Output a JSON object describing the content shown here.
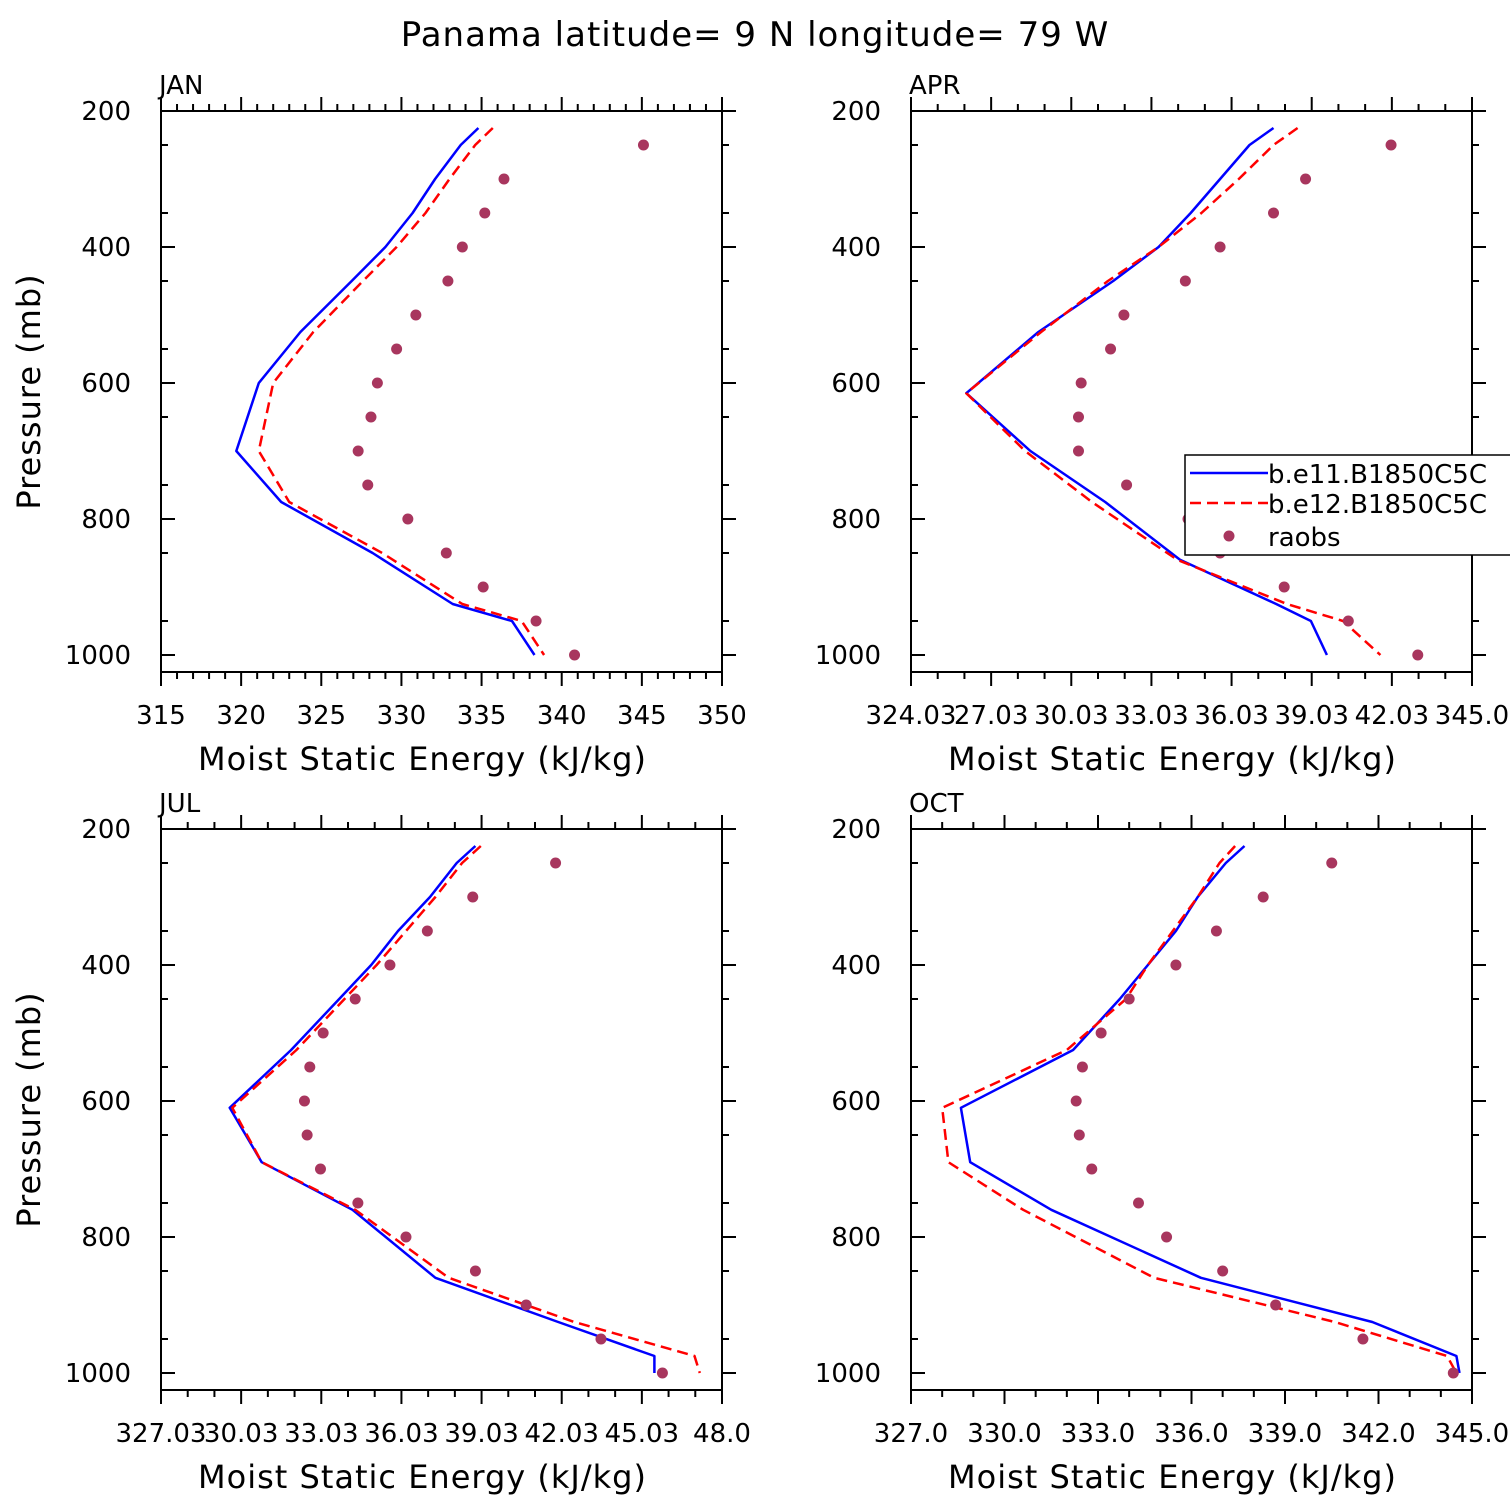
{
  "figure": {
    "title": "Panama  latitude= 9 N longitude= 79 W",
    "colors": {
      "model1": "#0000ff",
      "model2": "#ff0000",
      "obs": "#a8365e"
    },
    "legend": {
      "placement": "right of APR panel",
      "labels": [
        "b.e11.B1850C5C",
        "b.e12.B1850C5C",
        "raobs"
      ]
    }
  },
  "chart_data": [
    {
      "type": "line",
      "panel": "JAN",
      "title": "JAN",
      "xlabel": "Moist Static Energy (kJ/kg)",
      "ylabel": "Pressure (mb)",
      "xlim": [
        315,
        350
      ],
      "ylim": [
        1025,
        200
      ],
      "xticks": [
        315,
        320,
        325,
        330,
        335,
        340,
        345,
        350
      ],
      "xtick_labels": [
        "315",
        "320",
        "325",
        "330",
        "335",
        "340",
        "345",
        "350"
      ],
      "xminor": [
        316,
        317,
        318,
        319,
        321,
        322,
        323,
        324,
        326,
        327,
        328,
        329,
        331,
        332,
        333,
        334,
        336,
        337,
        338,
        339,
        341,
        342,
        343,
        344,
        346,
        347,
        348,
        349
      ],
      "yticks": [
        200,
        400,
        600,
        800,
        1000
      ],
      "ytick_labels": [
        "200",
        "400",
        "600",
        "800",
        "1000"
      ],
      "series": [
        {
          "style": "solid",
          "color": "#0000ff",
          "pressure": [
            225,
            250,
            300,
            350,
            400,
            450,
            525,
            600,
            700,
            775,
            850,
            925,
            950,
            1000
          ],
          "values": [
            334.8,
            333.7,
            332.1,
            330.7,
            329.0,
            326.9,
            323.7,
            321.1,
            319.7,
            322.5,
            328.2,
            333.2,
            336.9,
            338.3
          ]
        },
        {
          "style": "dashed",
          "color": "#ff0000",
          "pressure": [
            225,
            250,
            300,
            350,
            400,
            450,
            525,
            600,
            700,
            775,
            850,
            925,
            950,
            1000
          ],
          "values": [
            335.7,
            334.6,
            333.0,
            331.5,
            329.7,
            327.6,
            324.5,
            322.0,
            321.1,
            323.0,
            328.8,
            333.8,
            337.5,
            338.9
          ]
        },
        {
          "name": "raobs",
          "style": "dots",
          "color": "#a8365e",
          "pressure": [
            250,
            300,
            350,
            400,
            450,
            500,
            550,
            600,
            650,
            700,
            750,
            800,
            850,
            900,
            950,
            1000
          ],
          "values": [
            345.1,
            336.4,
            335.2,
            333.8,
            332.9,
            330.9,
            329.7,
            328.5,
            328.1,
            327.3,
            327.9,
            330.4,
            332.8,
            335.1,
            338.4,
            340.8
          ]
        }
      ]
    },
    {
      "type": "line",
      "panel": "APR",
      "title": "APR",
      "xlabel": "Moist Static Energy (kJ/kg)",
      "ylabel": "",
      "xlim": [
        324.03,
        345.03
      ],
      "ylim": [
        1025,
        200
      ],
      "xticks": [
        324.03,
        327.03,
        330.03,
        333.03,
        336.03,
        339.03,
        342.03,
        345.03
      ],
      "xtick_labels": [
        "324.03",
        "27.03",
        "30.03",
        "33.03",
        "36.03",
        "39.03",
        "42.03",
        "345.0"
      ],
      "xminor": [
        325.03,
        326.03,
        328.03,
        329.03,
        331.03,
        332.03,
        334.03,
        335.03,
        337.03,
        338.03,
        340.03,
        341.03,
        343.03,
        344.03
      ],
      "yticks": [
        200,
        400,
        600,
        800,
        1000
      ],
      "ytick_labels": [
        "200",
        "400",
        "600",
        "800",
        "1000"
      ],
      "series": [
        {
          "style": "solid",
          "color": "#0000ff",
          "pressure": [
            225,
            250,
            300,
            350,
            400,
            450,
            525,
            615,
            700,
            775,
            860,
            925,
            950,
            1000
          ],
          "values": [
            337.6,
            336.7,
            335.6,
            334.5,
            333.3,
            331.6,
            328.8,
            326.1,
            328.5,
            331.3,
            334.1,
            337.7,
            339.0,
            339.6
          ]
        },
        {
          "style": "dashed",
          "color": "#ff0000",
          "pressure": [
            225,
            250,
            300,
            350,
            400,
            450,
            525,
            615,
            700,
            775,
            860,
            925,
            950,
            1000
          ],
          "values": [
            338.5,
            337.6,
            336.3,
            334.9,
            333.3,
            331.4,
            328.9,
            326.1,
            328.3,
            330.8,
            334.0,
            338.1,
            340.2,
            341.6
          ]
        },
        {
          "name": "raobs",
          "style": "dots",
          "color": "#a8365e",
          "pressure": [
            250,
            300,
            350,
            400,
            450,
            500,
            550,
            600,
            650,
            700,
            750,
            800,
            850,
            900,
            950,
            1000
          ],
          "values": [
            342.0,
            338.8,
            337.6,
            335.6,
            334.3,
            332.0,
            331.5,
            330.4,
            330.3,
            330.3,
            332.1,
            334.4,
            335.6,
            338.0,
            340.4,
            343.0
          ]
        }
      ]
    },
    {
      "type": "line",
      "panel": "JUL",
      "title": "JUL",
      "xlabel": "Moist Static Energy (kJ/kg)",
      "ylabel": "Pressure (mb)",
      "xlim": [
        327.03,
        348.03
      ],
      "ylim": [
        1025,
        200
      ],
      "xticks": [
        327.03,
        330.03,
        333.03,
        336.03,
        339.03,
        342.03,
        345.03,
        348.03
      ],
      "xtick_labels": [
        "327.03",
        "30.03",
        "33.03",
        "36.03",
        "39.03",
        "42.03",
        "45.03",
        "48.0"
      ],
      "xminor": [
        328.03,
        329.03,
        331.03,
        332.03,
        334.03,
        335.03,
        337.03,
        338.03,
        340.03,
        341.03,
        343.03,
        344.03,
        346.03,
        347.03
      ],
      "yticks": [
        200,
        400,
        600,
        800,
        1000
      ],
      "ytick_labels": [
        "200",
        "400",
        "600",
        "800",
        "1000"
      ],
      "series": [
        {
          "style": "solid",
          "color": "#0000ff",
          "pressure": [
            225,
            250,
            300,
            350,
            400,
            450,
            525,
            610,
            690,
            760,
            860,
            925,
            975,
            1000
          ],
          "values": [
            338.8,
            338.1,
            337.1,
            335.9,
            334.9,
            333.7,
            331.9,
            329.6,
            330.8,
            334.2,
            337.3,
            341.9,
            345.5,
            345.5
          ]
        },
        {
          "style": "dashed",
          "color": "#ff0000",
          "pressure": [
            225,
            250,
            300,
            350,
            400,
            450,
            525,
            610,
            690,
            760,
            860,
            925,
            975,
            1000
          ],
          "values": [
            339.0,
            338.3,
            337.3,
            336.2,
            335.1,
            333.9,
            332.1,
            329.7,
            330.8,
            334.3,
            337.8,
            342.5,
            347.0,
            347.2
          ]
        },
        {
          "name": "raobs",
          "style": "dots",
          "color": "#a8365e",
          "pressure": [
            250,
            300,
            350,
            400,
            450,
            500,
            550,
            600,
            650,
            700,
            750,
            800,
            850,
            900,
            950,
            1000
          ],
          "values": [
            341.8,
            338.7,
            337.0,
            335.6,
            334.3,
            333.1,
            332.6,
            332.4,
            332.5,
            333.0,
            334.4,
            336.2,
            338.8,
            340.7,
            343.5,
            345.8
          ]
        }
      ]
    },
    {
      "type": "line",
      "panel": "OCT",
      "title": "OCT",
      "xlabel": "Moist Static Energy (kJ/kg)",
      "ylabel": "",
      "xlim": [
        327.0,
        345.0
      ],
      "ylim": [
        1025,
        200
      ],
      "xticks": [
        327.0,
        330.0,
        333.0,
        336.0,
        339.0,
        342.0,
        345.0
      ],
      "xtick_labels": [
        "327.0",
        "330.0",
        "333.0",
        "336.0",
        "339.0",
        "342.0",
        "345.0"
      ],
      "xminor": [
        328.0,
        329.0,
        331.0,
        332.0,
        334.0,
        335.0,
        337.0,
        338.0,
        340.0,
        341.0,
        343.0,
        344.0
      ],
      "yticks": [
        200,
        400,
        600,
        800,
        1000
      ],
      "ytick_labels": [
        "200",
        "400",
        "600",
        "800",
        "1000"
      ],
      "series": [
        {
          "style": "solid",
          "color": "#0000ff",
          "pressure": [
            225,
            250,
            300,
            350,
            400,
            450,
            525,
            610,
            690,
            760,
            860,
            925,
            975,
            1000
          ],
          "values": [
            337.7,
            337.1,
            336.2,
            335.5,
            334.6,
            333.7,
            332.2,
            328.6,
            328.9,
            331.5,
            336.3,
            341.8,
            344.5,
            344.6
          ]
        },
        {
          "style": "dashed",
          "color": "#ff0000",
          "pressure": [
            225,
            250,
            300,
            350,
            400,
            450,
            525,
            610,
            690,
            760,
            860,
            925,
            975,
            1000
          ],
          "values": [
            337.4,
            336.9,
            336.2,
            335.4,
            334.6,
            333.9,
            332.0,
            328.0,
            328.2,
            330.6,
            334.8,
            340.6,
            344.2,
            344.5
          ]
        },
        {
          "name": "raobs",
          "style": "dots",
          "color": "#a8365e",
          "pressure": [
            250,
            300,
            350,
            400,
            450,
            500,
            550,
            600,
            650,
            700,
            750,
            800,
            850,
            900,
            950,
            1000
          ],
          "values": [
            340.5,
            338.3,
            336.8,
            335.5,
            334.0,
            333.1,
            332.5,
            332.3,
            332.4,
            332.8,
            334.3,
            335.2,
            337.0,
            338.7,
            341.5,
            344.4
          ]
        }
      ]
    }
  ]
}
